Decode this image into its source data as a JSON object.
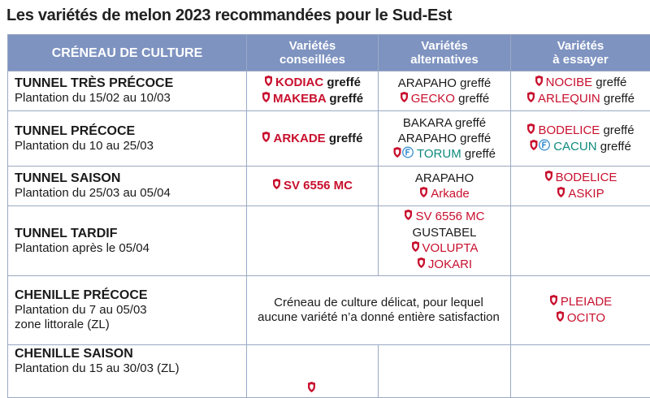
{
  "title": "Les variétés de melon 2023 recommandées pour le Sud-Est",
  "columns": {
    "slot": "CRÉNEAU DE CULTURE",
    "advised": [
      "Variétés",
      "conseillées"
    ],
    "alternative": [
      "Variétés",
      "alternatives"
    ],
    "trial": [
      "Variétés",
      "à essayer"
    ]
  },
  "rows": [
    {
      "slot": "TUNNEL TRÈS PRÉCOCE",
      "lines": [
        "Plantation du 15/02 au 10/03"
      ],
      "advised": [
        {
          "name": "KODIAC",
          "suffix": " greffé",
          "color": "red",
          "bold": true,
          "icon": "shield-icon"
        },
        {
          "name": "MAKEBA",
          "suffix": " greffé",
          "color": "red",
          "bold": true,
          "icon": "shield-icon"
        }
      ],
      "alternative": [
        {
          "name": "ARAPAHO",
          "suffix": " greffé",
          "color": "black",
          "bold": false,
          "icon": ""
        },
        {
          "name": "GECKO",
          "suffix": " greffé",
          "color": "red",
          "bold": false,
          "icon": "shield-icon"
        }
      ],
      "trial": [
        {
          "name": "NOCIBE",
          "suffix": " greffé",
          "color": "red",
          "bold": false,
          "icon": "shield-icon"
        },
        {
          "name": "ARLEQUIN",
          "suffix": " greffé",
          "color": "red",
          "bold": false,
          "icon": "shield-icon"
        }
      ]
    },
    {
      "slot": "TUNNEL PRÉCOCE",
      "lines": [
        "Plantation du 10 au 25/03"
      ],
      "advised": [
        {
          "name": "ARKADE",
          "suffix": " greffé",
          "color": "red",
          "bold": true,
          "icon": "shield-icon"
        }
      ],
      "alternative": [
        {
          "name": "BAKARA",
          "suffix": " greffé",
          "color": "black",
          "bold": false,
          "icon": ""
        },
        {
          "name": "ARAPAHO",
          "suffix": " greffé",
          "color": "black",
          "bold": false,
          "icon": ""
        },
        {
          "name": "TORUM",
          "suffix": " greffé",
          "color": "teal",
          "bold": false,
          "icon": "shield-icon f-badge-icon"
        }
      ],
      "trial": [
        {
          "name": "BODELICE",
          "suffix": " greffé",
          "color": "red",
          "bold": false,
          "icon": "shield-icon"
        },
        {
          "name": "CACUN",
          "suffix": " greffé",
          "color": "teal",
          "bold": false,
          "icon": "shield-icon f-badge-icon"
        }
      ]
    },
    {
      "slot": "TUNNEL SAISON",
      "lines": [
        "Plantation du 25/03 au 05/04"
      ],
      "advised": [
        {
          "name": "SV 6556 MC",
          "suffix": "",
          "color": "red",
          "bold": true,
          "icon": "shield-icon"
        }
      ],
      "alternative": [
        {
          "name": "ARAPAHO",
          "suffix": "",
          "color": "black",
          "bold": false,
          "icon": ""
        },
        {
          "name": "Arkade",
          "suffix": "",
          "color": "red",
          "bold": false,
          "icon": "shield-icon"
        }
      ],
      "trial": [
        {
          "name": "BODELICE",
          "suffix": "",
          "color": "red",
          "bold": false,
          "icon": "shield-icon"
        },
        {
          "name": "ASKIP",
          "suffix": "",
          "color": "red",
          "bold": false,
          "icon": "shield-icon"
        }
      ]
    },
    {
      "slot": "TUNNEL TARDIF",
      "lines": [
        "Plantation après le 05/04"
      ],
      "advised": [],
      "alternative": [
        {
          "name": "SV 6556 MC",
          "suffix": "",
          "color": "red",
          "bold": false,
          "icon": "shield-icon"
        },
        {
          "name": "GUSTABEL",
          "suffix": "",
          "color": "black",
          "bold": false,
          "icon": ""
        },
        {
          "name": "VOLUPTA",
          "suffix": "",
          "color": "red",
          "bold": false,
          "icon": "shield-icon"
        },
        {
          "name": "JOKARI",
          "suffix": "",
          "color": "red",
          "bold": false,
          "icon": "shield-icon"
        }
      ],
      "trial": []
    },
    {
      "slot": "CHENILLE PRÉCOCE",
      "lines": [
        "Plantation du 7 au 05/03",
        "zone littorale (ZL)"
      ],
      "note": "Créneau de culture délicat, pour lequel aucune variété n’a donné entière satisfaction",
      "trial": [
        {
          "name": "PLEIADE",
          "suffix": "",
          "color": "red",
          "bold": false,
          "icon": "shield-icon"
        },
        {
          "name": "OCITO",
          "suffix": "",
          "color": "red",
          "bold": false,
          "icon": "shield-icon"
        }
      ]
    },
    {
      "slot": "CHENILLE SAISON",
      "lines": [
        "Plantation du 15 au 30/03 (ZL)"
      ],
      "advised": [],
      "alternative": [],
      "trial": []
    }
  ],
  "colors": {
    "header_bg": "#7e93c0",
    "border": "#9aa9c4",
    "red": "#c8102e",
    "teal": "#0e8a7e"
  }
}
